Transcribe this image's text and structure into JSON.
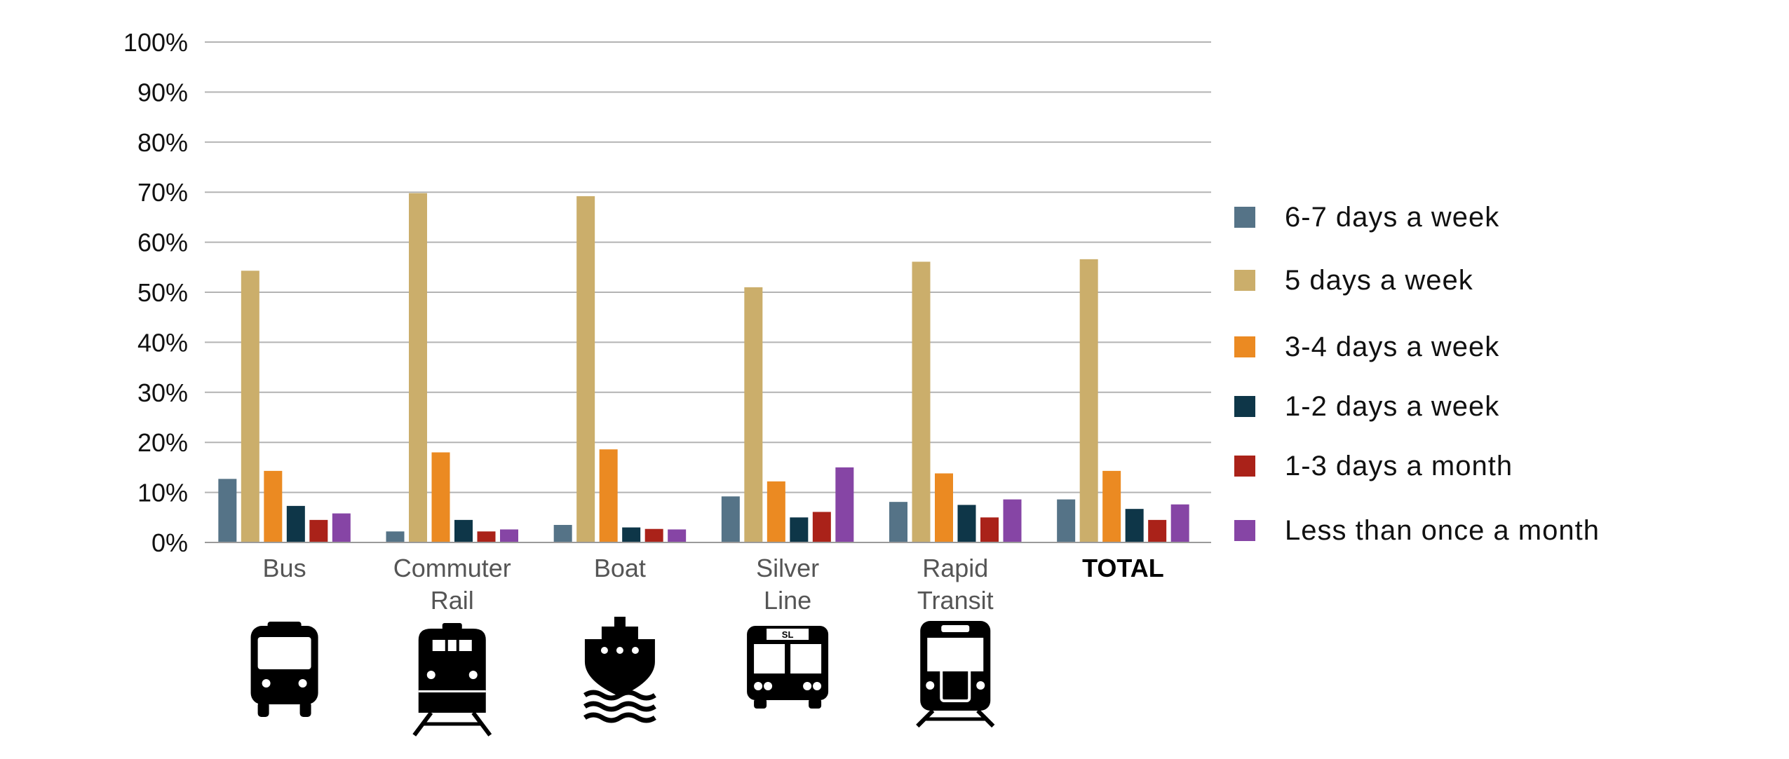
{
  "chart_data": {
    "type": "bar",
    "title": "",
    "xlabel": "",
    "ylabel": "",
    "ylim": [
      0,
      100
    ],
    "yticks": [
      "0%",
      "10%",
      "20%",
      "30%",
      "40%",
      "50%",
      "60%",
      "70%",
      "80%",
      "90%",
      "100%"
    ],
    "grid": true,
    "legend_position": "right",
    "categories": [
      {
        "lines": [
          "Bus"
        ],
        "bold": false,
        "icon": "bus-icon"
      },
      {
        "lines": [
          "Commuter",
          "Rail"
        ],
        "bold": false,
        "icon": "commuter-rail-icon"
      },
      {
        "lines": [
          "Boat"
        ],
        "bold": false,
        "icon": "ferry-boat-icon"
      },
      {
        "lines": [
          "Silver",
          "Line"
        ],
        "bold": false,
        "icon": "silver-line-bus-icon"
      },
      {
        "lines": [
          "Rapid",
          "Transit"
        ],
        "bold": false,
        "icon": "rapid-transit-train-icon"
      },
      {
        "lines": [
          "TOTAL"
        ],
        "bold": true,
        "icon": ""
      }
    ],
    "series": [
      {
        "name": "6-7 days a week",
        "color": "#557387",
        "values": [
          12.7,
          2.2,
          3.5,
          9.2,
          8.1,
          8.6
        ]
      },
      {
        "name": "5 days a week",
        "color": "#CBAE6B",
        "values": [
          54.3,
          69.8,
          69.2,
          51.0,
          56.1,
          56.6
        ]
      },
      {
        "name": "3-4 days a week",
        "color": "#EB8A22",
        "values": [
          14.3,
          18.0,
          18.6,
          12.2,
          13.8,
          14.3
        ]
      },
      {
        "name": "1-2 days a week",
        "color": "#0E3648",
        "values": [
          7.3,
          4.5,
          3.0,
          5.0,
          7.5,
          6.7
        ]
      },
      {
        "name": "1-3 days a month",
        "color": "#AA2219",
        "values": [
          4.5,
          2.2,
          2.7,
          6.1,
          5.0,
          4.5
        ]
      },
      {
        "name": "Less than once a month",
        "color": "#8645A5",
        "values": [
          5.8,
          2.6,
          2.6,
          15.0,
          8.6,
          7.6
        ]
      }
    ]
  }
}
